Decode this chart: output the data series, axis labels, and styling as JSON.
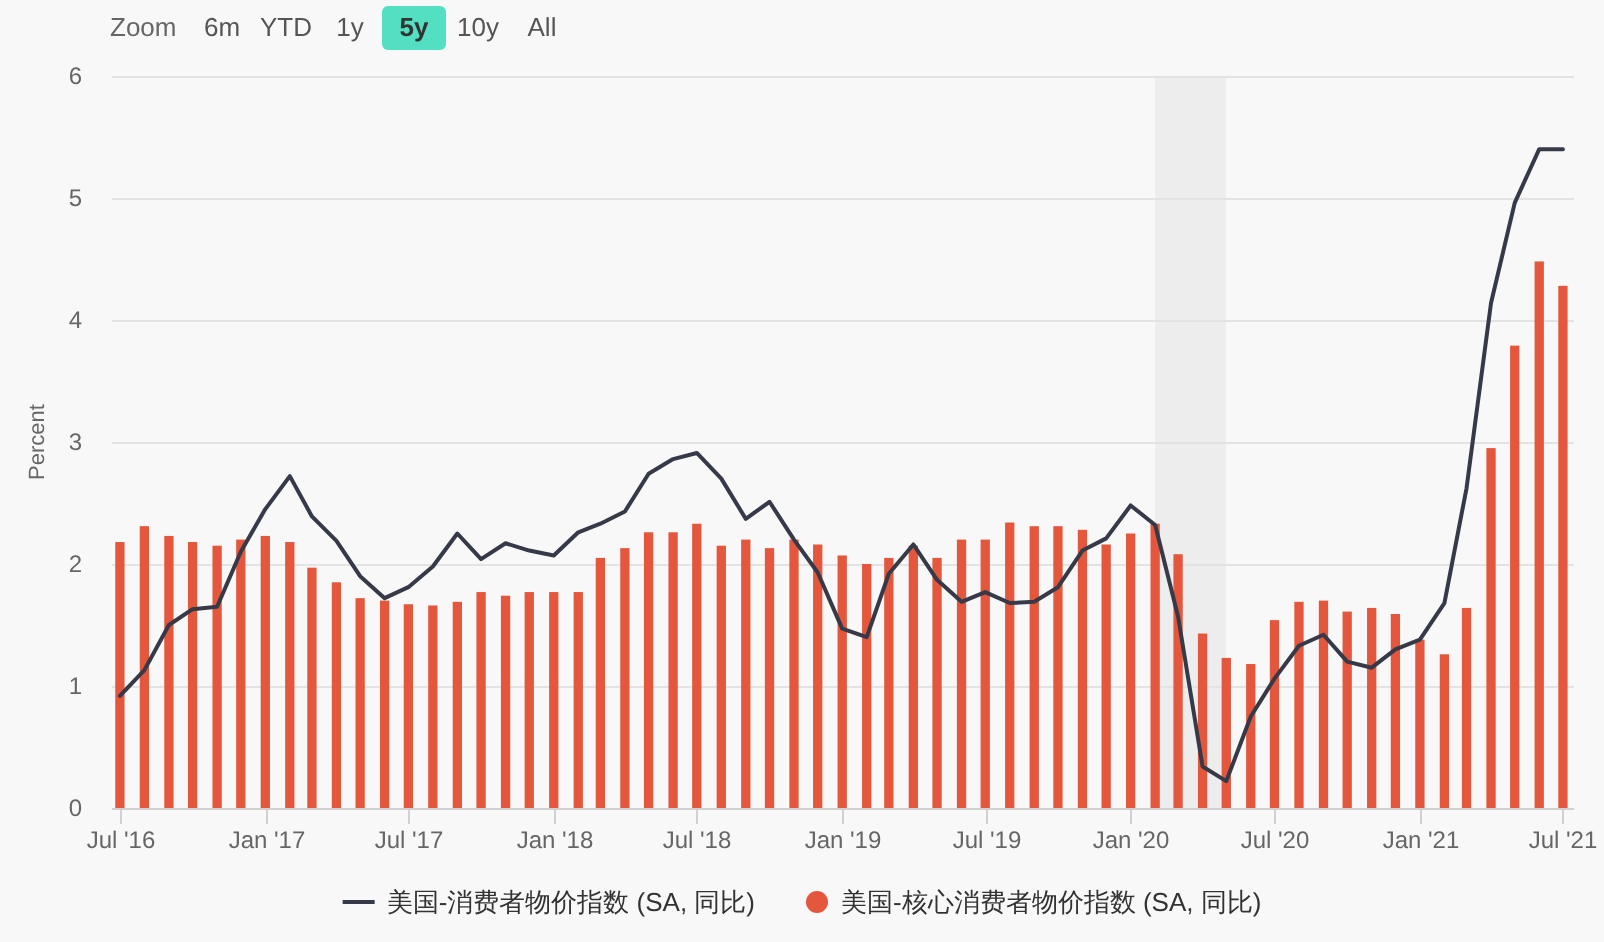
{
  "chart_data": {
    "type": "bar",
    "ylabel": "Percent",
    "annotations": [
      "Zoom",
      "6m",
      "YTD",
      "1y",
      "5y",
      "10y",
      "All"
    ],
    "x": [
      "2016-07",
      "2016-08",
      "2016-09",
      "2016-10",
      "2016-11",
      "2016-12",
      "2017-01",
      "2017-02",
      "2017-03",
      "2017-04",
      "2017-05",
      "2017-06",
      "2017-07",
      "2017-08",
      "2017-09",
      "2017-10",
      "2017-11",
      "2017-12",
      "2018-01",
      "2018-02",
      "2018-03",
      "2018-04",
      "2018-05",
      "2018-06",
      "2018-07",
      "2018-08",
      "2018-09",
      "2018-10",
      "2018-11",
      "2018-12",
      "2019-01",
      "2019-02",
      "2019-03",
      "2019-04",
      "2019-05",
      "2019-06",
      "2019-07",
      "2019-08",
      "2019-09",
      "2019-10",
      "2019-11",
      "2019-12",
      "2020-01",
      "2020-02",
      "2020-03",
      "2020-04",
      "2020-05",
      "2020-06",
      "2020-07",
      "2020-08",
      "2020-09",
      "2020-10",
      "2020-11",
      "2020-12",
      "2021-01",
      "2021-02",
      "2021-03",
      "2021-04",
      "2021-05",
      "2021-06",
      "2021-07"
    ],
    "xlim": [
      "2016-06-21",
      "2021-07-15"
    ],
    "xticks": [
      {
        "value": "2016-07",
        "label": "Jul '16"
      },
      {
        "value": "2017-01",
        "label": "Jan '17"
      },
      {
        "value": "2017-07",
        "label": "Jul '17"
      },
      {
        "value": "2018-01",
        "label": "Jan '18"
      },
      {
        "value": "2018-07",
        "label": "Jul '18"
      },
      {
        "value": "2019-01",
        "label": "Jan '19"
      },
      {
        "value": "2019-07",
        "label": "Jul '19"
      },
      {
        "value": "2020-01",
        "label": "Jan '20"
      },
      {
        "value": "2020-07",
        "label": "Jul '20"
      },
      {
        "value": "2021-01",
        "label": "Jan '21"
      },
      {
        "value": "2021-07",
        "label": "Jul '21"
      }
    ],
    "ylim": [
      0,
      6
    ],
    "yticks": [
      0,
      1,
      2,
      3,
      4,
      5,
      6
    ],
    "series": [
      {
        "name": "美国-消费者物价指数 (SA, 同比)",
        "type": "line",
        "color": "#363a48",
        "values": [
          0.92,
          1.13,
          1.5,
          1.63,
          1.65,
          2.1,
          2.45,
          2.72,
          2.39,
          2.19,
          1.9,
          1.72,
          1.81,
          1.98,
          2.25,
          2.04,
          2.17,
          2.11,
          2.07,
          2.26,
          2.33,
          2.43,
          2.74,
          2.86,
          2.91,
          2.7,
          2.37,
          2.51,
          2.2,
          1.93,
          1.47,
          1.4,
          1.92,
          2.16,
          1.87,
          1.69,
          1.77,
          1.68,
          1.69,
          1.81,
          2.11,
          2.21,
          2.48,
          2.32,
          1.57,
          0.34,
          0.22,
          0.75,
          1.06,
          1.33,
          1.42,
          1.2,
          1.15,
          1.3,
          1.38,
          1.68,
          2.62,
          4.14,
          4.96,
          5.4,
          5.4
        ]
      },
      {
        "name": "美国-核心消费者物价指数 (SA, 同比)",
        "color": "#e4573d",
        "values": [
          2.18,
          2.31,
          2.23,
          2.18,
          2.15,
          2.2,
          2.23,
          2.18,
          1.97,
          1.85,
          1.72,
          1.7,
          1.67,
          1.66,
          1.69,
          1.77,
          1.74,
          1.77,
          1.77,
          1.77,
          2.05,
          2.13,
          2.26,
          2.26,
          2.33,
          2.15,
          2.2,
          2.13,
          2.2,
          2.16,
          2.07,
          2.0,
          2.05,
          2.15,
          2.05,
          2.2,
          2.2,
          2.34,
          2.31,
          2.31,
          2.28,
          2.16,
          2.25,
          2.33,
          2.08,
          1.43,
          1.23,
          1.18,
          1.54,
          1.69,
          1.7,
          1.61,
          1.64,
          1.59,
          1.38,
          1.26,
          1.64,
          2.95,
          3.79,
          4.48,
          4.28
        ]
      }
    ],
    "bands": [
      {
        "axis": "x",
        "from": "2020-02-01",
        "to": "2020-04-30",
        "color": "#ededed"
      }
    ],
    "grid": "y",
    "legend": "bottom"
  }
}
